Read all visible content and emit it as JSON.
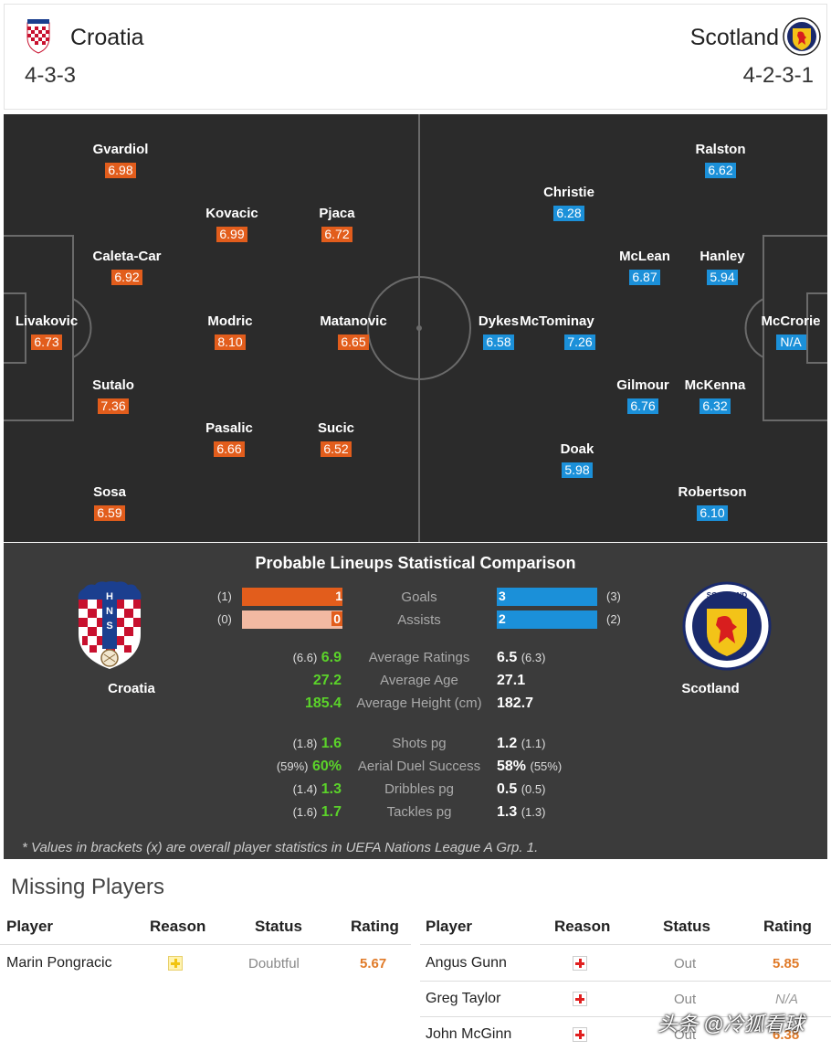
{
  "header": {
    "home": {
      "name": "Croatia",
      "formation": "4-3-3"
    },
    "away": {
      "name": "Scotland",
      "formation": "4-2-3-1"
    }
  },
  "lineup": {
    "home_players": [
      {
        "name": "Gvardiol",
        "rating": "6.98"
      },
      {
        "name": "Kovacic",
        "rating": "6.99"
      },
      {
        "name": "Pjaca",
        "rating": "6.72"
      },
      {
        "name": "Caleta-Car",
        "rating": "6.92"
      },
      {
        "name": "Livakovic",
        "rating": "6.73"
      },
      {
        "name": "Modric",
        "rating": "8.10"
      },
      {
        "name": "Matanovic",
        "rating": "6.65"
      },
      {
        "name": "Sutalo",
        "rating": "7.36"
      },
      {
        "name": "Pasalic",
        "rating": "6.66"
      },
      {
        "name": "Sucic",
        "rating": "6.52"
      },
      {
        "name": "Sosa",
        "rating": "6.59"
      }
    ],
    "away_players": [
      {
        "name": "Ralston",
        "rating": "6.62"
      },
      {
        "name": "Christie",
        "rating": "6.28"
      },
      {
        "name": "McLean",
        "rating": "6.87"
      },
      {
        "name": "Hanley",
        "rating": "5.94"
      },
      {
        "name": "Dykes",
        "rating": "6.58"
      },
      {
        "name": "McTominay",
        "rating": "7.26"
      },
      {
        "name": "McCrorie",
        "rating": "N/A"
      },
      {
        "name": "Gilmour",
        "rating": "6.76"
      },
      {
        "name": "McKenna",
        "rating": "6.32"
      },
      {
        "name": "Doak",
        "rating": "5.98"
      },
      {
        "name": "Robertson",
        "rating": "6.10"
      }
    ],
    "colors": {
      "home": "#e25d1c",
      "away": "#1b90d9"
    }
  },
  "comparison": {
    "title": "Probable Lineups Statistical Comparison",
    "home_name": "Croatia",
    "away_name": "Scotland",
    "bars": [
      {
        "label": "Goals",
        "home": "1",
        "home_overall": "(1)",
        "away": "3",
        "away_overall": "(3)"
      },
      {
        "label": "Assists",
        "home": "0",
        "home_overall": "(0)",
        "away": "2",
        "away_overall": "(2)"
      }
    ],
    "group1": [
      {
        "label": "Average Ratings",
        "home_overall": "(6.6)",
        "home": "6.9",
        "away": "6.5",
        "away_overall": "(6.3)"
      },
      {
        "label": "Average Age",
        "home_overall": "",
        "home": "27.2",
        "away": "27.1",
        "away_overall": ""
      },
      {
        "label": "Average Height (cm)",
        "home_overall": "",
        "home": "185.4",
        "away": "182.7",
        "away_overall": ""
      }
    ],
    "group2": [
      {
        "label": "Shots pg",
        "home_overall": "(1.8)",
        "home": "1.6",
        "away": "1.2",
        "away_overall": "(1.1)"
      },
      {
        "label": "Aerial Duel Success",
        "home_overall": "(59%)",
        "home": "60%",
        "away": "58%",
        "away_overall": "(55%)"
      },
      {
        "label": "Dribbles pg",
        "home_overall": "(1.4)",
        "home": "1.3",
        "away": "0.5",
        "away_overall": "(0.5)"
      },
      {
        "label": "Tackles pg",
        "home_overall": "(1.6)",
        "home": "1.7",
        "away": "1.3",
        "away_overall": "(1.3)"
      }
    ],
    "note": "* Values in brackets (x) are overall player statistics in UEFA Nations League A Grp. 1."
  },
  "missing": {
    "title": "Missing Players",
    "columns": [
      "Player",
      "Reason",
      "Status",
      "Rating"
    ],
    "home": [
      {
        "player": "Marin Pongracic",
        "reason": "doubtful-icon",
        "status": "Doubtful",
        "rating": "5.67"
      }
    ],
    "away": [
      {
        "player": "Angus Gunn",
        "reason": "injury-icon",
        "status": "Out",
        "rating": "5.85"
      },
      {
        "player": "Greg Taylor",
        "reason": "injury-icon",
        "status": "Out",
        "rating": "N/A"
      },
      {
        "player": "John McGinn",
        "reason": "injury-icon",
        "status": "Out",
        "rating": "6.38"
      }
    ]
  },
  "watermark": "头条 @冷狐看球"
}
